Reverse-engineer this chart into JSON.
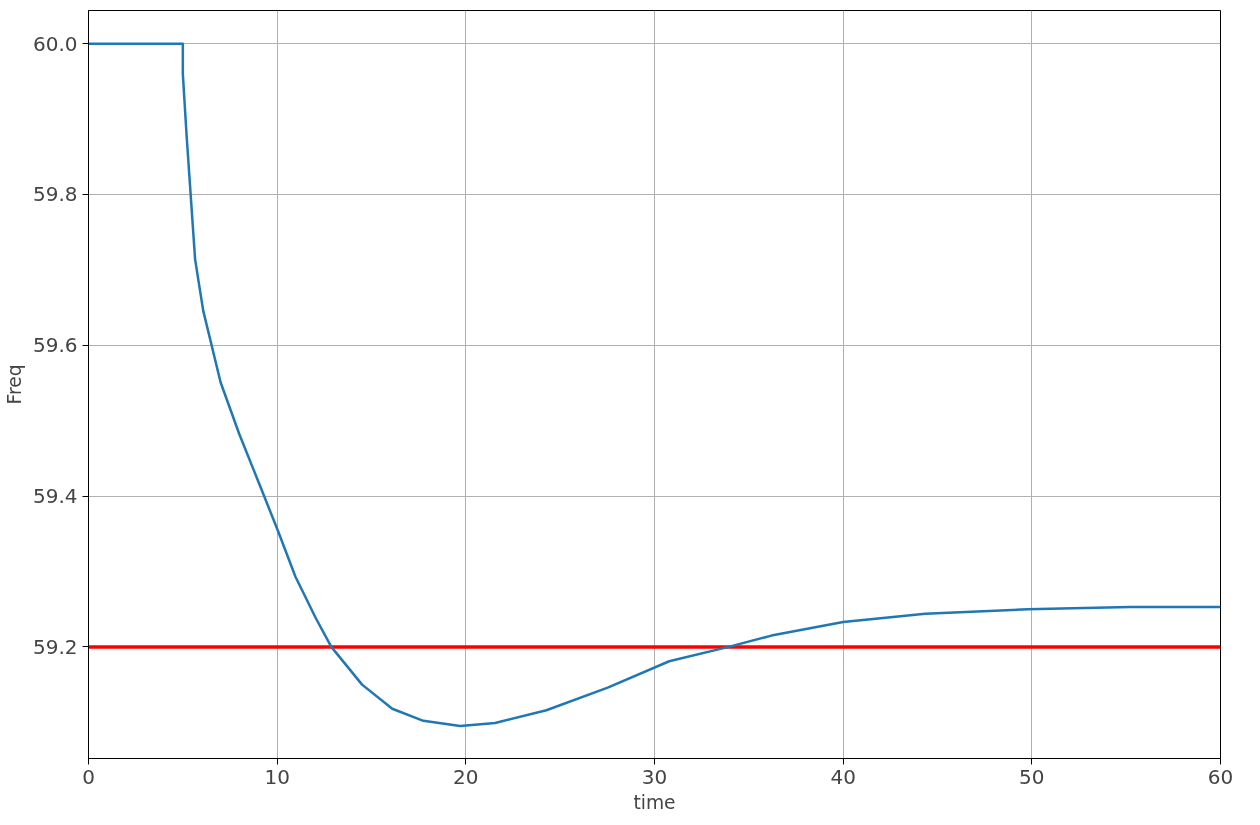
{
  "chart_data": {
    "type": "line",
    "xlabel": "time",
    "ylabel": "Freq",
    "xlim": [
      0,
      60
    ],
    "ylim": [
      59.052,
      60.044
    ],
    "xticks": [
      0,
      10,
      20,
      30,
      40,
      50,
      60
    ],
    "yticks": [
      {
        "value": 59.2,
        "label": "59.2"
      },
      {
        "value": 59.4,
        "label": "59.4"
      },
      {
        "value": 59.6,
        "label": "59.6"
      },
      {
        "value": 59.8,
        "label": "59.8"
      },
      {
        "value": 60.0,
        "label": "60.0"
      }
    ],
    "grid": true,
    "x": [
      0,
      5,
      5.0,
      5.2,
      5.65,
      6.08,
      7.0,
      7.98,
      9.07,
      10.04,
      10.97,
      12.05,
      12.87,
      14.5,
      16.1,
      17.75,
      19.7,
      21.55,
      24.27,
      27.52,
      30.78,
      33.93,
      36.2,
      40.0,
      44.35,
      49.78,
      55.2,
      60
    ],
    "series": [
      {
        "color": "#1f77b4",
        "values": [
          60.0,
          60.0,
          59.96,
          59.878,
          59.714,
          59.646,
          59.551,
          59.483,
          59.415,
          59.354,
          59.293,
          59.238,
          59.2,
          59.15,
          59.118,
          59.102,
          59.095,
          59.099,
          59.116,
          59.146,
          59.181,
          59.2,
          59.215,
          59.233,
          59.244,
          59.25,
          59.253,
          59.253
        ]
      }
    ],
    "ref_lines": [
      {
        "axis": "y",
        "value": 59.2,
        "color": "#ff0000"
      }
    ]
  }
}
